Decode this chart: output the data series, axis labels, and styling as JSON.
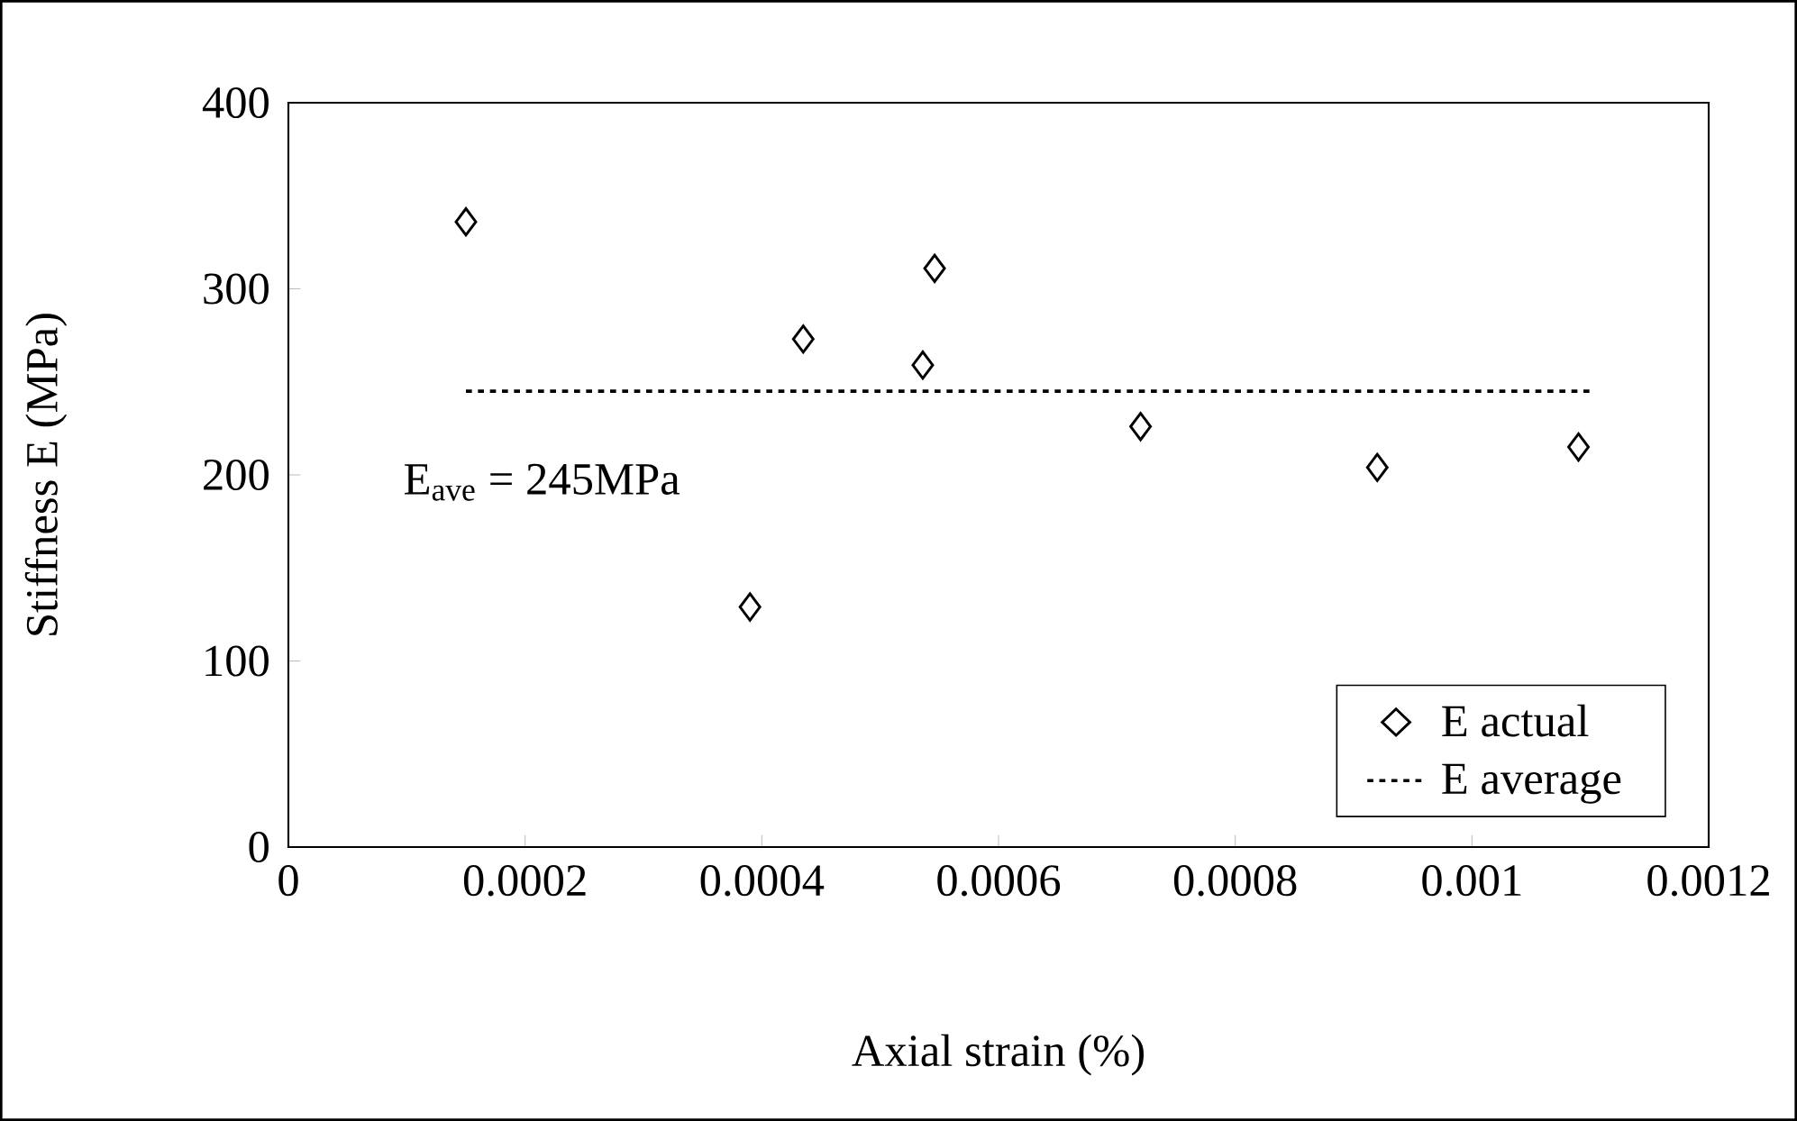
{
  "chart_data": {
    "type": "scatter",
    "xlabel": "Axial strain (%)",
    "ylabel": "Stiffness E (MPa)",
    "xlim": [
      0,
      0.0012
    ],
    "xticks": [
      0,
      0.0002,
      0.0004,
      0.0006,
      0.0008,
      0.001,
      0.0012
    ],
    "ylim": [
      0,
      400
    ],
    "yticks": [
      0,
      100,
      200,
      300,
      400
    ],
    "legend": "bottom right",
    "annotations": [
      "E$_{ave}$ = 245MPa"
    ],
    "series": [
      {
        "name": "E actual",
        "marker": "diamond",
        "color": "#000000",
        "x": [
          0.00015,
          0.00039,
          0.000435,
          0.000536,
          0.000546,
          0.00072,
          0.00092,
          0.00109
        ],
        "values": [
          336,
          129,
          273,
          259,
          311,
          226,
          204,
          215
        ]
      },
      {
        "name": "E average",
        "type": "line",
        "line_style": "dotted",
        "color": "#000000",
        "x": [
          0.00015,
          0.0011
        ],
        "values": [
          245,
          245
        ]
      }
    ]
  }
}
